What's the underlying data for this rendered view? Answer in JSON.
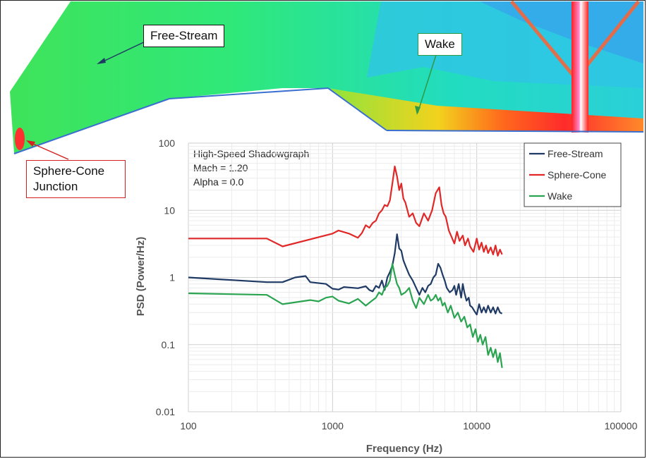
{
  "annotations": {
    "free_stream": "Free-Stream",
    "wake": "Wake",
    "sphere_cone_line1": "Sphere-Cone",
    "sphere_cone_line2": "Junction"
  },
  "chart_data": {
    "type": "line",
    "info_lines": [
      "High-Speed Shadowgraph",
      "Mach = 1.20",
      "Alpha = 0.0"
    ],
    "xlabel": "Frequency (Hz)",
    "ylabel": "PSD (Power/Hz)",
    "x_scale": "log",
    "y_scale": "log",
    "xlim": [
      100,
      100000
    ],
    "ylim": [
      0.01,
      100
    ],
    "x_ticks": [
      "100",
      "1000",
      "10000",
      "100000"
    ],
    "y_ticks": [
      "100",
      "10",
      "1",
      "0.1",
      "0.01"
    ],
    "grid": true,
    "legend_position": "top-right",
    "colors": {
      "free_stream": "#1f3a64",
      "sphere_cone": "#e02828",
      "wake": "#2aa450",
      "grid": "#d9d9d9",
      "axis": "#888888"
    },
    "series": [
      {
        "name": "Free-Stream",
        "color": "#1f3a64",
        "x": [
          100,
          350,
          450,
          550,
          650,
          700,
          900,
          1000,
          1100,
          1200,
          1500,
          1700,
          1800,
          1900,
          2000,
          2100,
          2200,
          2300,
          2400,
          2500,
          2600,
          2700,
          2800,
          2900,
          3000,
          3100,
          3200,
          3400,
          3600,
          3800,
          4000,
          4200,
          4400,
          4600,
          4800,
          5000,
          5200,
          5400,
          5600,
          5800,
          6000,
          6200,
          6500,
          6800,
          7000,
          7200,
          7500,
          7800,
          8000,
          8200,
          8500,
          8800,
          9000,
          9300,
          9600,
          10000,
          10400,
          10800,
          11200,
          11600,
          12000,
          12500,
          13000,
          13500,
          14000,
          14500,
          15000
        ],
        "y": [
          1.0,
          0.85,
          0.85,
          1.0,
          1.05,
          0.85,
          0.8,
          0.68,
          0.66,
          0.72,
          0.69,
          0.74,
          0.65,
          0.62,
          0.75,
          0.7,
          0.9,
          0.65,
          1.0,
          1.2,
          1.5,
          2.3,
          4.4,
          2.7,
          2.5,
          1.8,
          1.5,
          1.1,
          0.9,
          0.7,
          0.55,
          0.7,
          0.6,
          0.75,
          0.8,
          1.0,
          1.1,
          1.6,
          1.4,
          1.1,
          0.9,
          0.7,
          0.6,
          0.65,
          0.75,
          0.55,
          0.8,
          0.5,
          0.8,
          0.6,
          0.45,
          0.5,
          0.38,
          0.36,
          0.32,
          0.28,
          0.4,
          0.3,
          0.36,
          0.3,
          0.38,
          0.3,
          0.36,
          0.29,
          0.36,
          0.3,
          0.29
        ]
      },
      {
        "name": "Sphere-Cone",
        "color": "#e02828",
        "x": [
          100,
          350,
          450,
          1000,
          1100,
          1300,
          1500,
          1600,
          1700,
          1800,
          1900,
          2000,
          2100,
          2200,
          2300,
          2400,
          2500,
          2600,
          2700,
          2800,
          2900,
          3000,
          3100,
          3200,
          3400,
          3600,
          3800,
          4000,
          4300,
          4600,
          4900,
          5200,
          5500,
          5700,
          5900,
          6100,
          6400,
          6700,
          7000,
          7300,
          7600,
          8000,
          8300,
          8700,
          9000,
          9500,
          10000,
          10400,
          10800,
          11200,
          11600,
          12000,
          12500,
          13000,
          13500,
          14000,
          14500,
          15000
        ],
        "y": [
          3.8,
          3.8,
          2.9,
          4.5,
          5.0,
          4.5,
          3.9,
          4.6,
          6.0,
          5.5,
          6.5,
          7.0,
          9.0,
          10.0,
          12.0,
          11.5,
          14.0,
          25.0,
          45.0,
          32.0,
          20.0,
          25.0,
          15.0,
          13.0,
          8.0,
          9.0,
          6.5,
          5.8,
          9.0,
          7.0,
          10.0,
          18.0,
          22.0,
          12.0,
          9.0,
          8.0,
          5.0,
          4.0,
          3.2,
          4.8,
          3.5,
          4.2,
          3.0,
          3.8,
          2.9,
          2.4,
          3.8,
          2.6,
          3.3,
          2.4,
          3.0,
          2.3,
          2.8,
          2.2,
          3.0,
          2.1,
          2.6,
          2.2
        ]
      },
      {
        "name": "Wake",
        "color": "#2aa450",
        "x": [
          100,
          350,
          450,
          700,
          800,
          900,
          1000,
          1100,
          1300,
          1500,
          1700,
          1900,
          2000,
          2100,
          2200,
          2300,
          2400,
          2500,
          2600,
          2700,
          2800,
          2900,
          3000,
          3200,
          3400,
          3600,
          3800,
          4000,
          4300,
          4600,
          4800,
          5000,
          5200,
          5400,
          5600,
          5800,
          6000,
          6300,
          6600,
          7000,
          7400,
          7800,
          8200,
          8600,
          9000,
          9400,
          9800,
          10200,
          10600,
          11000,
          11500,
          12000,
          12500,
          13000,
          13500,
          14000,
          14500,
          15000
        ],
        "y": [
          0.58,
          0.55,
          0.4,
          0.46,
          0.44,
          0.5,
          0.52,
          0.45,
          0.41,
          0.48,
          0.38,
          0.46,
          0.5,
          0.6,
          0.55,
          0.7,
          0.75,
          0.9,
          1.6,
          1.1,
          0.8,
          0.7,
          0.55,
          0.6,
          0.7,
          0.45,
          0.35,
          0.5,
          0.4,
          0.55,
          0.45,
          0.48,
          0.55,
          0.45,
          0.5,
          0.38,
          0.42,
          0.3,
          0.38,
          0.25,
          0.3,
          0.22,
          0.26,
          0.18,
          0.2,
          0.13,
          0.17,
          0.11,
          0.14,
          0.1,
          0.13,
          0.07,
          0.09,
          0.065,
          0.085,
          0.055,
          0.075,
          0.045
        ]
      }
    ]
  }
}
